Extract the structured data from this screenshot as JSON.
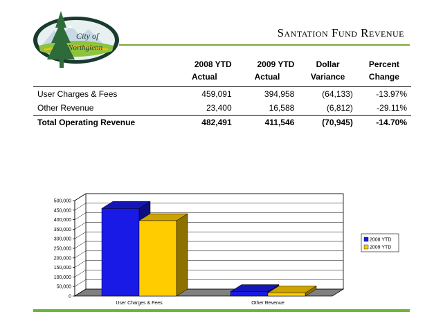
{
  "header": {
    "title": "Santation Fund Revenue",
    "logo_text_line1": "City of",
    "logo_text_line2": "Northglenn"
  },
  "table": {
    "columns": [
      {
        "line1": "",
        "line2": ""
      },
      {
        "line1": "2008 YTD",
        "line2": "Actual"
      },
      {
        "line1": "2009 YTD",
        "line2": "Actual"
      },
      {
        "line1": "Dollar",
        "line2": "Variance"
      },
      {
        "line1": "Percent",
        "line2": "Change"
      }
    ],
    "rows": [
      {
        "label": "User Charges & Fees",
        "y2008": "459,091",
        "y2009": "394,958",
        "variance": "(64,133)",
        "change": "-13.97%"
      },
      {
        "label": "Other Revenue",
        "y2008": "23,400",
        "y2009": "16,588",
        "variance": "(6,812)",
        "change": "-29.11%"
      }
    ],
    "total": {
      "label": "Total Operating Revenue",
      "y2008": "482,491",
      "y2009": "411,546",
      "variance": "(70,945)",
      "change": "-14.70%"
    }
  },
  "chart_data": {
    "type": "bar",
    "categories": [
      "User Charges & Fees",
      "Other Revenue"
    ],
    "series": [
      {
        "name": "2008 YTD",
        "values": [
          459091,
          23400
        ],
        "color": "#1a1ae6"
      },
      {
        "name": "2009 YTD",
        "values": [
          394958,
          16588
        ],
        "color": "#ffcc00"
      }
    ],
    "ylim": [
      0,
      500000
    ],
    "yticks": [
      "0",
      "50,000",
      "100,000",
      "150,000",
      "200,000",
      "250,000",
      "300,000",
      "350,000",
      "400,000",
      "450,000",
      "500,000"
    ],
    "legend_position": "right",
    "grid": true,
    "three_d": true
  },
  "colors": {
    "accent_green": "#6fb43a"
  }
}
